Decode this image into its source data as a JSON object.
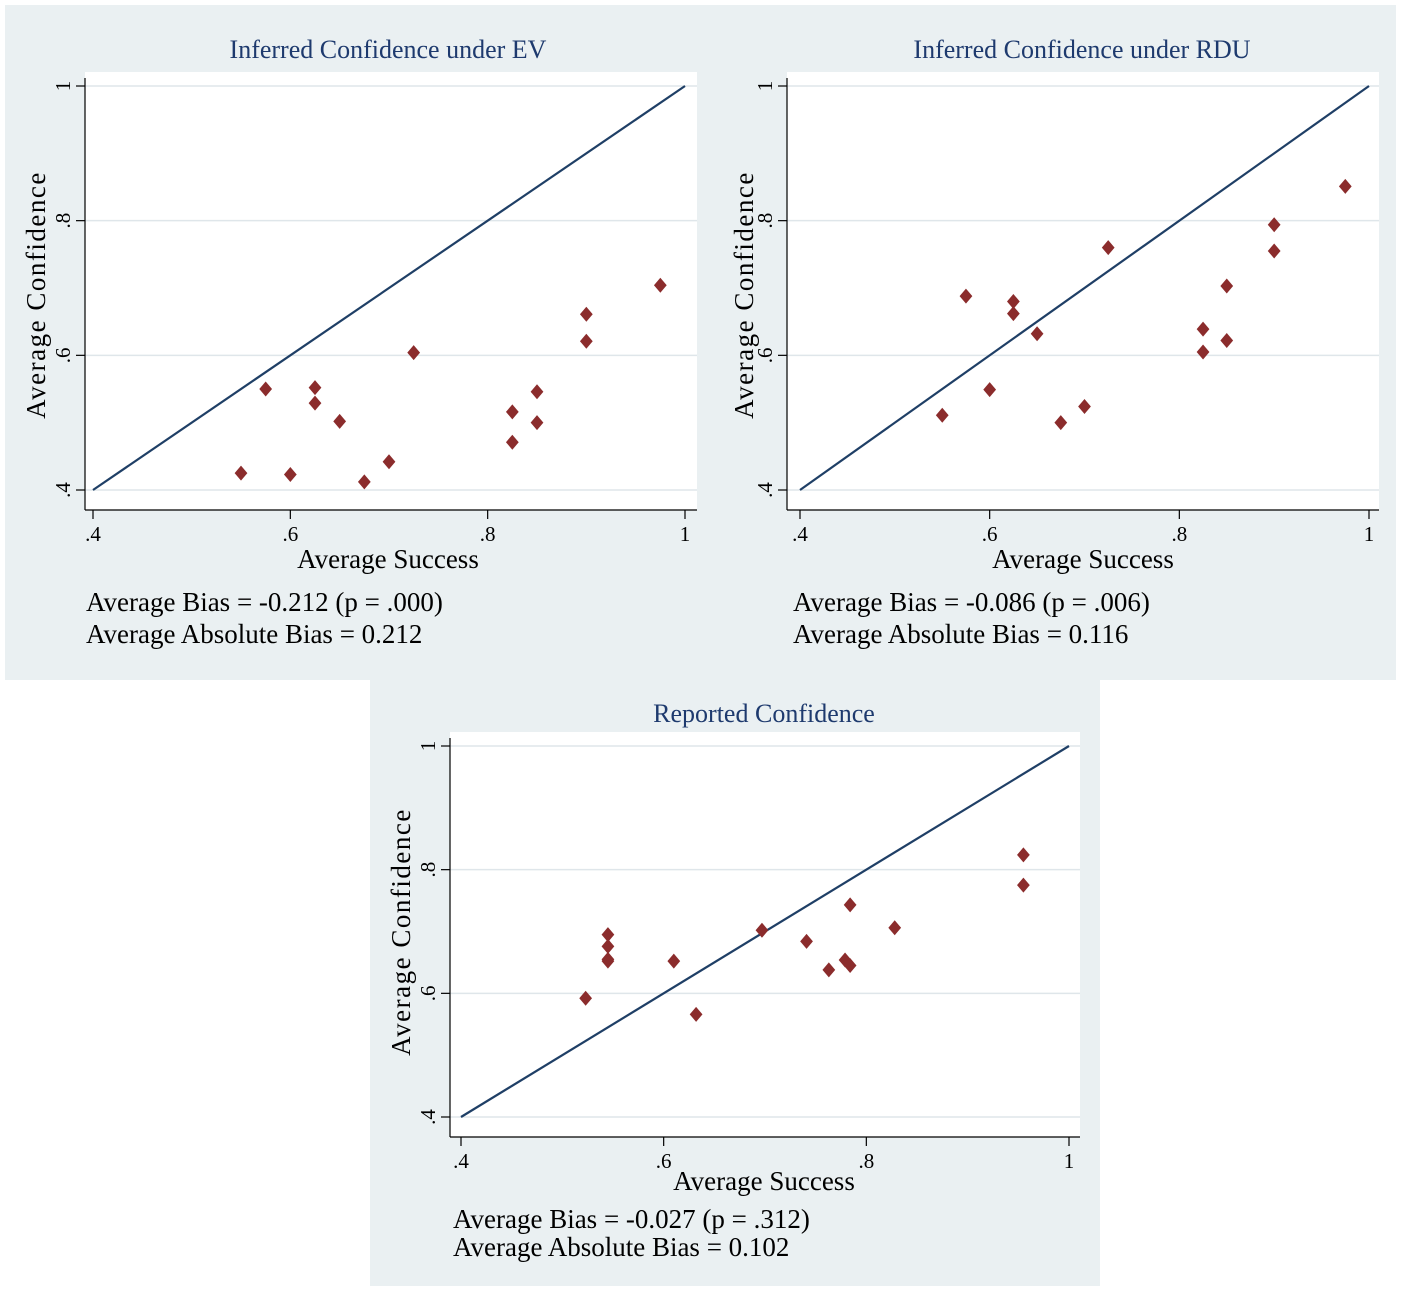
{
  "colors": {
    "panel_bg": "#eaf0f2",
    "plot_bg": "#ffffff",
    "grid": "#dfe6ea",
    "line": "#1f3f66",
    "marker": "#8b2c2c",
    "title": "#1e3a6e",
    "text": "#000000"
  },
  "chart_data": [
    {
      "type": "scatter",
      "title": "Inferred Confidence under EV",
      "xlabel": "Average Success",
      "ylabel": "Average Confidence",
      "xlim": [
        0.4,
        1.0
      ],
      "ylim": [
        0.4,
        1.0
      ],
      "xticks": [
        ".4",
        ".6",
        ".8",
        "1"
      ],
      "yticks": [
        ".4",
        ".6",
        ".8",
        "1"
      ],
      "grid": true,
      "reference_line": "45-degree",
      "points": [
        {
          "x": 0.55,
          "y": 0.425
        },
        {
          "x": 0.575,
          "y": 0.55
        },
        {
          "x": 0.6,
          "y": 0.423
        },
        {
          "x": 0.625,
          "y": 0.552
        },
        {
          "x": 0.625,
          "y": 0.529
        },
        {
          "x": 0.65,
          "y": 0.502
        },
        {
          "x": 0.675,
          "y": 0.412
        },
        {
          "x": 0.7,
          "y": 0.442
        },
        {
          "x": 0.725,
          "y": 0.604
        },
        {
          "x": 0.825,
          "y": 0.516
        },
        {
          "x": 0.825,
          "y": 0.471
        },
        {
          "x": 0.85,
          "y": 0.546
        },
        {
          "x": 0.85,
          "y": 0.5
        },
        {
          "x": 0.9,
          "y": 0.661
        },
        {
          "x": 0.9,
          "y": 0.621
        },
        {
          "x": 0.975,
          "y": 0.704
        }
      ],
      "annotations": [
        "Average Bias = -0.212 (p = .000)",
        "Average Absolute Bias = 0.212"
      ]
    },
    {
      "type": "scatter",
      "title": "Inferred Confidence under RDU",
      "xlabel": "Average Success",
      "ylabel": "Average Confidence",
      "xlim": [
        0.4,
        1.0
      ],
      "ylim": [
        0.4,
        1.0
      ],
      "xticks": [
        ".4",
        ".6",
        ".8",
        "1"
      ],
      "yticks": [
        ".4",
        ".6",
        ".8",
        "1"
      ],
      "grid": true,
      "reference_line": "45-degree",
      "points": [
        {
          "x": 0.55,
          "y": 0.511
        },
        {
          "x": 0.575,
          "y": 0.688
        },
        {
          "x": 0.6,
          "y": 0.549
        },
        {
          "x": 0.625,
          "y": 0.68
        },
        {
          "x": 0.625,
          "y": 0.662
        },
        {
          "x": 0.65,
          "y": 0.632
        },
        {
          "x": 0.675,
          "y": 0.5
        },
        {
          "x": 0.7,
          "y": 0.524
        },
        {
          "x": 0.725,
          "y": 0.76
        },
        {
          "x": 0.825,
          "y": 0.639
        },
        {
          "x": 0.825,
          "y": 0.605
        },
        {
          "x": 0.85,
          "y": 0.703
        },
        {
          "x": 0.85,
          "y": 0.622
        },
        {
          "x": 0.9,
          "y": 0.794
        },
        {
          "x": 0.9,
          "y": 0.755
        },
        {
          "x": 0.975,
          "y": 0.851
        }
      ],
      "annotations": [
        "Average Bias = -0.086 (p = .006)",
        "Average Absolute Bias = 0.116"
      ]
    },
    {
      "type": "scatter",
      "title": "Reported Confidence",
      "xlabel": "Average Success",
      "ylabel": "Average Confidence",
      "xlim": [
        0.4,
        1.0
      ],
      "ylim": [
        0.4,
        1.0
      ],
      "xticks": [
        ".4",
        ".6",
        ".8",
        "1"
      ],
      "yticks": [
        ".4",
        ".6",
        ".8",
        "1"
      ],
      "grid": true,
      "reference_line": "45-degree",
      "points": [
        {
          "x": 0.523,
          "y": 0.592
        },
        {
          "x": 0.545,
          "y": 0.695
        },
        {
          "x": 0.545,
          "y": 0.676
        },
        {
          "x": 0.545,
          "y": 0.655
        },
        {
          "x": 0.545,
          "y": 0.652
        },
        {
          "x": 0.61,
          "y": 0.652
        },
        {
          "x": 0.632,
          "y": 0.566
        },
        {
          "x": 0.697,
          "y": 0.702
        },
        {
          "x": 0.741,
          "y": 0.684
        },
        {
          "x": 0.763,
          "y": 0.638
        },
        {
          "x": 0.779,
          "y": 0.654
        },
        {
          "x": 0.784,
          "y": 0.645
        },
        {
          "x": 0.784,
          "y": 0.743
        },
        {
          "x": 0.828,
          "y": 0.706
        },
        {
          "x": 0.955,
          "y": 0.824
        },
        {
          "x": 0.955,
          "y": 0.775
        }
      ],
      "annotations": [
        "Average Bias = -0.027 (p = .312)",
        "Average Absolute Bias = 0.102"
      ]
    }
  ]
}
